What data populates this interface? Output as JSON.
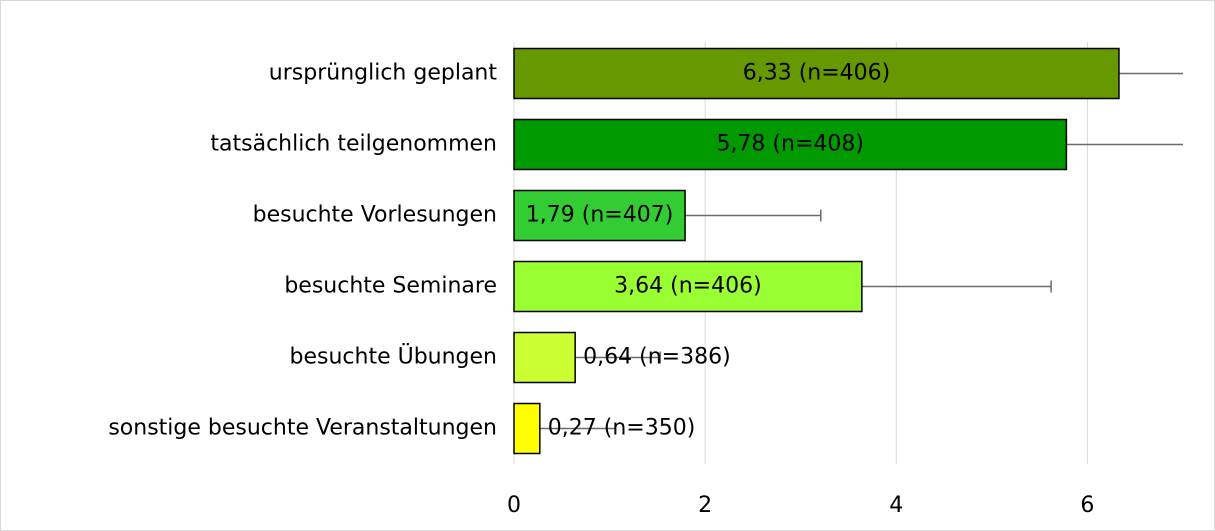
{
  "chart_data": {
    "type": "bar",
    "orientation": "horizontal",
    "categories": [
      "ursprünglich geplant",
      "tatsächlich teilgenommen",
      "besuchte Vorlesungen",
      "besuchte Seminare",
      "besuchte Übungen",
      "sonstige besuchte Veranstaltungen"
    ],
    "values": [
      6.33,
      5.78,
      1.79,
      3.64,
      0.64,
      0.27
    ],
    "value_labels": [
      "6,33 (n=406)",
      "5,78 (n=408)",
      "1,79 (n=407)",
      "3,64 (n=406)",
      "0,64 (n=386)",
      "0,27 (n=350)"
    ],
    "errors": [
      2.28,
      2.05,
      1.42,
      1.98,
      0.89,
      0.79
    ],
    "colors": [
      "#669900",
      "#009900",
      "#33cc33",
      "#99ff33",
      "#ccff33",
      "#ffff00"
    ],
    "error_color": "#6b6b6b",
    "xlim": [
      0,
      7
    ],
    "xticks": [
      0,
      2,
      4,
      6
    ],
    "grid": true
  }
}
